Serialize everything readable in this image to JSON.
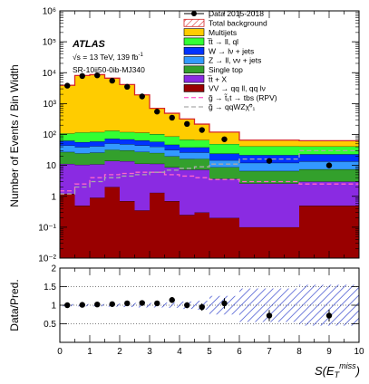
{
  "chart_data": [
    {
      "type": "area",
      "title": "",
      "xlabel": "",
      "ylabel": "Number of Events / Bin Width",
      "yscale": "log",
      "ylim": [
        0.01,
        1000000
      ],
      "xlim": [
        0,
        10
      ],
      "bin_edges": [
        0,
        0.5,
        1,
        1.5,
        2,
        2.5,
        3,
        3.5,
        4,
        4.5,
        5,
        6,
        8,
        10
      ],
      "annotations": {
        "experiment": "ATLAS",
        "energy": "√s = 13 TeV, 139 fb",
        "energy_sup": "-1",
        "region": "SR-10ij50-0ib-MJ340"
      },
      "y_tick_labels": [
        "10⁻²",
        "10⁻¹",
        "1",
        "10",
        "10²",
        "10³",
        "10⁴",
        "10⁵",
        "10⁶"
      ],
      "y_tick_values": [
        0.01,
        0.1,
        1,
        10,
        100,
        1000,
        10000,
        100000,
        1000000
      ],
      "legend": [
        {
          "label": "Data 2015-2018",
          "color": "#000000",
          "kind": "data"
        },
        {
          "label": "Total background",
          "color": "#d62728",
          "kind": "hatch"
        },
        {
          "label": "Multijets",
          "color": "#ffcc00",
          "kind": "fill"
        },
        {
          "label": "t̅t → ll, ql",
          "color": "#33ff33",
          "kind": "fill"
        },
        {
          "label": "W → lν + jets",
          "color": "#0033ff",
          "kind": "fill"
        },
        {
          "label": "Z → ll, νν + jets",
          "color": "#3399ff",
          "kind": "fill"
        },
        {
          "label": "Single top",
          "color": "#33a02c",
          "kind": "fill"
        },
        {
          "label": "t̅t + X",
          "color": "#8a2be2",
          "kind": "fill"
        },
        {
          "label": "VV → qq ll, qq lν",
          "color": "#990000",
          "kind": "fill"
        },
        {
          "label": "g̃ → t̃₁t → tbs (RPV)",
          "color": "#ff66cc",
          "kind": "dash"
        },
        {
          "label": "g̃ → qqWZχ̃⁰₁",
          "color": "#aaaaaa",
          "kind": "dash"
        }
      ],
      "stack_order": [
        "VV → qq ll, qq lν",
        "t̅t + X",
        "Single top",
        "Z → ll, νν + jets",
        "W → lν + jets",
        "t̅t → ll, ql",
        "Multijets"
      ],
      "series": [
        {
          "name": "VV → qq ll, qq lν",
          "values": [
            1.2,
            0.5,
            0.9,
            2.0,
            0.7,
            0.35,
            1.3,
            0.7,
            0.25,
            0.3,
            0.2,
            0.1,
            0.5
          ]
        },
        {
          "name": "t̅t + X",
          "values": [
            10,
            10,
            10,
            12,
            13,
            11,
            10,
            8,
            7,
            7,
            3.5,
            2.5,
            2.5
          ]
        },
        {
          "name": "Single top",
          "values": [
            16,
            14,
            15,
            18,
            17,
            16,
            14,
            11,
            9,
            9,
            5,
            4,
            4.5
          ]
        },
        {
          "name": "Z → ll, νν + jets",
          "values": [
            17,
            15,
            16,
            19,
            18,
            17,
            15,
            12,
            10,
            10,
            6,
            5.5,
            6
          ]
        },
        {
          "name": "W → lν + jets",
          "values": [
            19,
            17,
            18,
            22,
            21,
            20,
            18,
            15,
            12,
            12,
            9.5,
            9.5,
            9.5
          ]
        },
        {
          "name": "t̅t → ll, ql",
          "values": [
            45,
            60,
            60,
            60,
            50,
            50,
            45,
            40,
            30,
            28,
            25,
            20,
            18
          ]
        },
        {
          "name": "Multijets",
          "values": [
            3800,
            8000,
            8500,
            6500,
            4000,
            1800,
            600,
            400,
            250,
            150,
            70,
            24,
            22
          ]
        }
      ],
      "data": {
        "x": [
          0.25,
          0.75,
          1.25,
          1.75,
          2.25,
          2.75,
          3.25,
          3.75,
          4.25,
          4.75,
          5.5,
          7,
          9
        ],
        "y": [
          3800,
          7800,
          8200,
          5500,
          3500,
          1700,
          550,
          350,
          220,
          140,
          70,
          14,
          10
        ]
      },
      "signals": [
        {
          "name": "g̃ → t̃₁t → tbs (RPV)",
          "values": [
            1.5,
            2.5,
            4,
            5,
            5.5,
            6,
            6,
            5,
            4.5,
            4,
            3.5,
            3,
            2.5
          ]
        },
        {
          "name": "g̃ → qqWZχ̃⁰₁",
          "values": [
            1.2,
            2,
            3,
            4,
            4.5,
            5,
            6,
            7,
            8,
            9,
            11,
            16,
            30
          ]
        }
      ]
    },
    {
      "type": "scatter",
      "title": "",
      "xlabel": "S(E",
      "xlabel_sub": "T",
      "xlabel_sup": "miss",
      "xlabel_tail": ")",
      "ylabel": "Data/Pred.",
      "ylim": [
        0,
        2
      ],
      "xlim": [
        0,
        10
      ],
      "x_tick_labels": [
        "0",
        "1",
        "2",
        "3",
        "4",
        "5",
        "6",
        "7",
        "8",
        "9",
        "10"
      ],
      "y_tick_labels": [
        "0.5",
        "1",
        "1.5",
        "2"
      ],
      "y_tick_values": [
        0.5,
        1,
        1.5,
        2
      ],
      "points": [
        {
          "x": 0.25,
          "y": 1.0,
          "err": 0.02
        },
        {
          "x": 0.75,
          "y": 1.01,
          "err": 0.02
        },
        {
          "x": 1.25,
          "y": 1.02,
          "err": 0.02
        },
        {
          "x": 1.75,
          "y": 1.03,
          "err": 0.03
        },
        {
          "x": 2.25,
          "y": 1.05,
          "err": 0.03
        },
        {
          "x": 2.75,
          "y": 1.06,
          "err": 0.04
        },
        {
          "x": 3.25,
          "y": 1.05,
          "err": 0.06
        },
        {
          "x": 3.75,
          "y": 1.14,
          "err": 0.08
        },
        {
          "x": 4.25,
          "y": 1.0,
          "err": 0.08
        },
        {
          "x": 4.75,
          "y": 0.95,
          "err": 0.1
        },
        {
          "x": 5.5,
          "y": 1.05,
          "err": 0.14
        },
        {
          "x": 7,
          "y": 0.72,
          "err": 0.15
        },
        {
          "x": 9,
          "y": 0.72,
          "err": 0.16
        }
      ],
      "uncertainty": [
        0.03,
        0.03,
        0.03,
        0.04,
        0.05,
        0.06,
        0.06,
        0.07,
        0.1,
        0.12,
        0.25,
        0.45,
        0.55
      ]
    }
  ]
}
